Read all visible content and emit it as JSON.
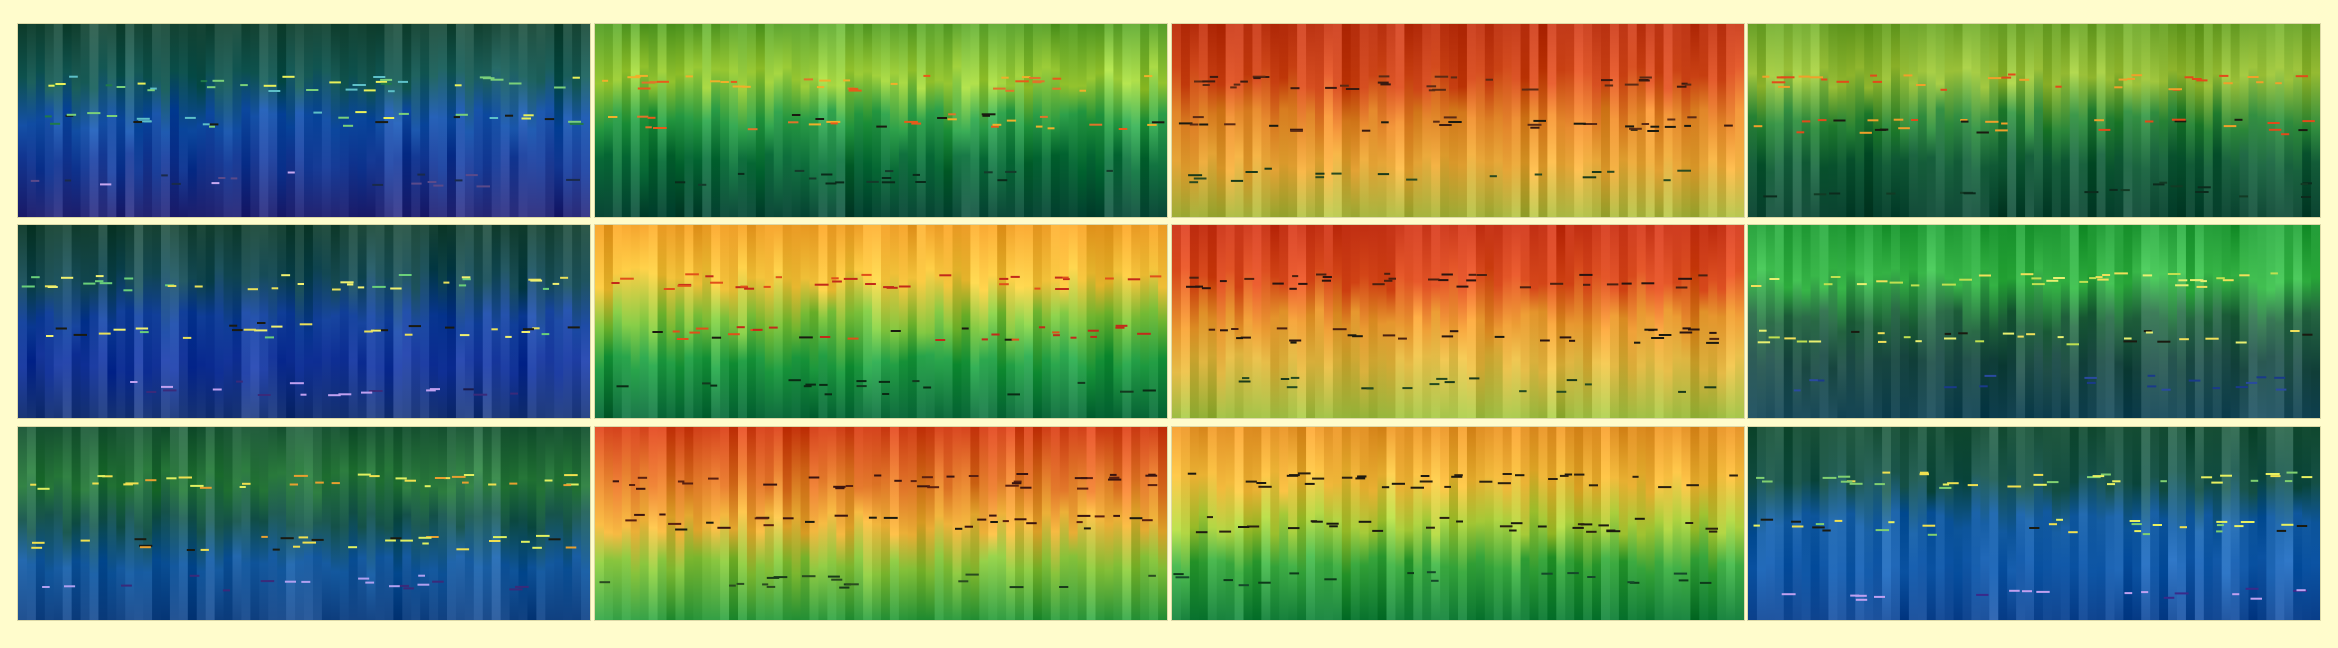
{
  "background": "#fffccc",
  "panels": [
    {
      "row": 0,
      "col": 0,
      "palette": "blue",
      "stops": [
        "#1f4d3c",
        "#1a5e5a",
        "#1652a8",
        "#1a3f9a",
        "#2a2a78"
      ],
      "markerColors": [
        "#e9f05a",
        "#1f7a4a",
        "#5dc0c8",
        "#7ad07a"
      ],
      "lowColors": [
        "#c8a8f0",
        "#5a4a8a",
        "#1a2a4a"
      ]
    },
    {
      "row": 0,
      "col": 1,
      "palette": "green",
      "stops": [
        "#5fa632",
        "#9fcf3a",
        "#2ea14a",
        "#0e6f3c",
        "#0e4a3a"
      ],
      "markerColors": [
        "#e85a1a",
        "#f0b02a",
        "#e0742a"
      ],
      "lowColors": [
        "#0a2a1a",
        "#153a2a"
      ]
    },
    {
      "row": 0,
      "col": 2,
      "palette": "red",
      "stops": [
        "#c23a1a",
        "#d24a1c",
        "#e2862a",
        "#e9a83a",
        "#a9b842"
      ],
      "markerColors": [
        "#3a1a10",
        "#5a2a14"
      ],
      "lowColors": [
        "#1a3a1a",
        "#2a4a20"
      ]
    },
    {
      "row": 0,
      "col": 3,
      "palette": "lime",
      "stops": [
        "#6fa62e",
        "#9cc23a",
        "#2e8a3c",
        "#17603c",
        "#124a38"
      ],
      "markerColors": [
        "#e24a1a",
        "#f0a02a"
      ],
      "lowColors": [
        "#0c2a1c",
        "#123a24"
      ]
    },
    {
      "row": 1,
      "col": 0,
      "palette": "blue",
      "stops": [
        "#1f4a3a",
        "#1a4f5a",
        "#1846a0",
        "#1a3aa0",
        "#1e3a7a"
      ],
      "markerColors": [
        "#f0f070",
        "#e9e05a",
        "#6ad07a"
      ],
      "lowColors": [
        "#c0a0f0",
        "#3a2a7a",
        "#1a1a4a"
      ]
    },
    {
      "row": 1,
      "col": 1,
      "palette": "orange",
      "stops": [
        "#f0a02a",
        "#f2c23a",
        "#7ac03a",
        "#1e9a40",
        "#0e6a3c"
      ],
      "markerColors": [
        "#c22a1a",
        "#e0501a"
      ],
      "lowColors": [
        "#0a2a14",
        "#13381e"
      ]
    },
    {
      "row": 1,
      "col": 2,
      "palette": "red",
      "stops": [
        "#c8361a",
        "#d84a1c",
        "#e6962e",
        "#dcb23e",
        "#9cbc42"
      ],
      "markerColors": [
        "#2a1410",
        "#4a2010"
      ],
      "lowColors": [
        "#1a3a1a",
        "#244a20"
      ]
    },
    {
      "row": 1,
      "col": 3,
      "palette": "green",
      "stops": [
        "#27a03c",
        "#3ab84a",
        "#2a6a46",
        "#22504a",
        "#1a4a5a"
      ],
      "markerColors": [
        "#f0e05a",
        "#e8f070",
        "#c0e050"
      ],
      "lowColors": [
        "#2a4aa0",
        "#1a3a8a"
      ]
    },
    {
      "row": 2,
      "col": 0,
      "palette": "teal",
      "stops": [
        "#1f5a3a",
        "#2a7a3c",
        "#1d5a52",
        "#155aa0",
        "#1a4a8a"
      ],
      "markerColors": [
        "#f0e050",
        "#e8a030",
        "#e0f060"
      ],
      "lowColors": [
        "#b0a0f0",
        "#3a2a7a"
      ]
    },
    {
      "row": 2,
      "col": 1,
      "palette": "orange",
      "stops": [
        "#d2401a",
        "#e2782a",
        "#eeb23a",
        "#86c23a",
        "#2e9a40"
      ],
      "markerColors": [
        "#3a1410",
        "#5a2010"
      ],
      "lowColors": [
        "#1a3a1a",
        "#2a4a20"
      ]
    },
    {
      "row": 2,
      "col": 2,
      "palette": "orange",
      "stops": [
        "#e6942a",
        "#f0b83a",
        "#a8cc3a",
        "#3aa83e",
        "#16803c"
      ],
      "markerColors": [
        "#1e1a10",
        "#2a2010"
      ],
      "lowColors": [
        "#0e3a1a",
        "#15482a"
      ]
    },
    {
      "row": 2,
      "col": 3,
      "palette": "blue",
      "stops": [
        "#225a40",
        "#1f5a50",
        "#1a62a8",
        "#1860b0",
        "#1a4f9a"
      ],
      "markerColors": [
        "#e8f060",
        "#f0e050",
        "#80d070"
      ],
      "lowColors": [
        "#c0a0f0",
        "#3a2a8a"
      ]
    }
  ]
}
